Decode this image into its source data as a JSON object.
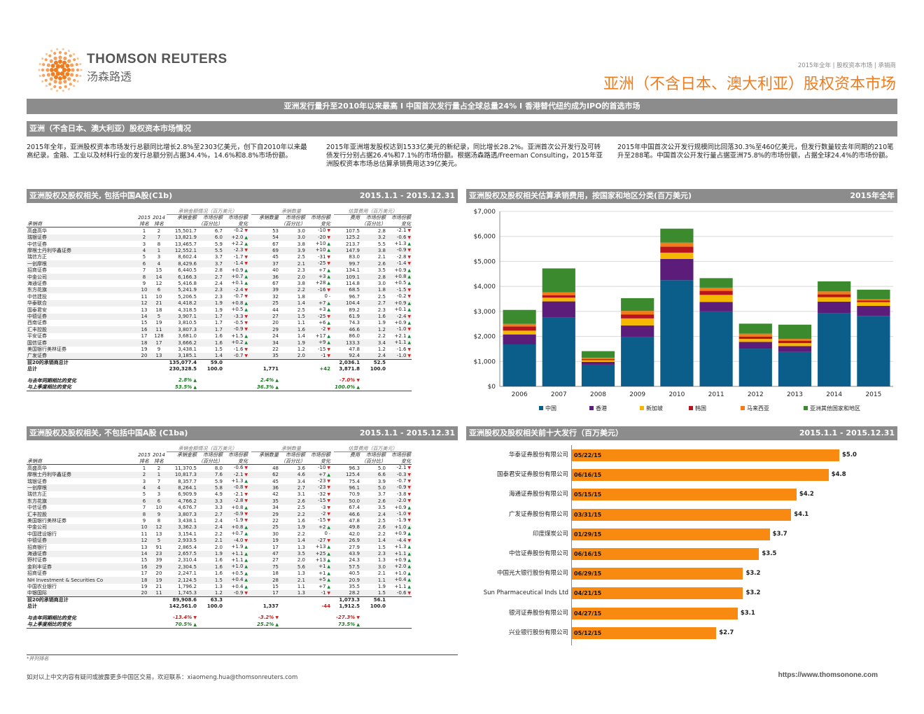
{
  "brand": {
    "name": "THOMSON REUTERS",
    "name_cn": "汤森路透"
  },
  "breadcrumb": "2015年全年 | 股权资本市场 | 承销商",
  "title": "亚洲（不含日本、澳大利亚）股权资本市场",
  "headline": "亚洲发行量升至2010年以来最高 I 中国首次发行量占全球总量24% I 香港替代纽约成为IPO的首选市场",
  "section_title": "亚洲（不含日本、澳大利亚）股权资本市场情况",
  "paragraphs": [
    "2015年全年，亚洲股权资本市场发行总额同比增长2.8%至2303亿美元，创下自2010年以来最高纪录。金融、工业以及材料行业的发行总额分别占据34.4%，14.6%和8.8%市场份额。",
    "2015年亚洲增发股权达到1533亿美元的新纪录，同比增长28.2%。亚洲首次公开发行及可转债发行分别占据26.4%和7.1%的市场份额。根据汤森路透/Freeman Consulting，2015年亚洲股权资本市场总估算承销费用达39亿美元。",
    "2015年中国首次公开发行规模同比回落30.3%至460亿美元，但发行数量较去年同期的210笔升至288笔。中国首次公开发行量占据亚洲75.8%的市场份额，占据全球24.4%的市场份额。"
  ],
  "colors": {
    "orange": "#f88a12",
    "grey": "#8c8c8c",
    "up": "#0a8a2c",
    "down": "#d21e1e"
  },
  "group_heads": {
    "proceeds": "承销金额情况（百万美元）",
    "deals": "承销数量",
    "fees": "估算费用（百万美元）"
  },
  "col_heads": {
    "y2015": "2015",
    "y2014": "2014",
    "rank": "排名",
    "manager": "承销商",
    "proceeds": "承销金额",
    "share1": "市场份额",
    "share2": "（百分比）",
    "mshare1": "市场份额",
    "mshare2": "变化",
    "deals": "承销数量",
    "fees": "费用"
  },
  "table1": {
    "title": "亚洲股权及股权相关, 包括中国A股(C1b)",
    "period": "2015.1.1 - 2015.12.31",
    "rows": [
      [
        "高盛高华",
        "1",
        "2",
        "15,501.7",
        "6.7",
        "-0.2",
        "53",
        "3.0",
        "-10",
        "107.5",
        "2.8",
        "-2.1"
      ],
      [
        "瑞银证券",
        "2",
        "7",
        "13,821.9",
        "6.0",
        "+2.0",
        "54",
        "3.0",
        "-20",
        "125.2",
        "3.2",
        "-0.6"
      ],
      [
        "中信证券",
        "3",
        "8",
        "13,465.7",
        "5.9",
        "+2.2",
        "67",
        "3.8",
        "+10",
        "213.7",
        "5.5",
        "+1.3"
      ],
      [
        "摩根士丹利华鑫证券",
        "4",
        "1",
        "12,552.1",
        "5.5",
        "-2.3",
        "69",
        "3.9",
        "+10",
        "147.9",
        "3.8",
        "-0.9"
      ],
      [
        "瑞信方正",
        "5",
        "3",
        "8,602.4",
        "3.7",
        "-1.7",
        "45",
        "2.5",
        "-31",
        "83.0",
        "2.1",
        "-2.8"
      ],
      [
        "一创摩根",
        "6",
        "4",
        "8,429.6",
        "3.7",
        "-1.4",
        "37",
        "2.1",
        "-25",
        "99.7",
        "2.6",
        "-1.4"
      ],
      [
        "招商证券",
        "7",
        "15",
        "6,440.5",
        "2.8",
        "+0.9",
        "40",
        "2.3",
        "+7",
        "134.1",
        "3.5",
        "+0.9"
      ],
      [
        "中金公司",
        "8",
        "14",
        "6,166.3",
        "2.7",
        "+0.7",
        "36",
        "2.0",
        "+3",
        "109.1",
        "2.8",
        "+0.8"
      ],
      [
        "海通证券",
        "9",
        "12",
        "5,416.8",
        "2.4",
        "+0.1",
        "67",
        "3.8",
        "+28",
        "114.8",
        "3.0",
        "+0.5"
      ],
      [
        "东方花旗",
        "10",
        "6",
        "5,241.9",
        "2.3",
        "-2.4",
        "39",
        "2.2",
        "-16",
        "68.5",
        "1.8",
        "-1.5"
      ],
      [
        "中信建投",
        "11",
        "10",
        "5,206.5",
        "2.3",
        "-0.7",
        "32",
        "1.8",
        "0",
        "96.7",
        "2.5",
        "-0.2"
      ],
      [
        "华泰联合",
        "12",
        "21",
        "4,418.2",
        "1.9",
        "+0.8",
        "25",
        "1.4",
        "+7",
        "104.4",
        "2.7",
        "+0.9"
      ],
      [
        "国泰君安",
        "13",
        "18",
        "4,318.5",
        "1.9",
        "+0.5",
        "44",
        "2.5",
        "+3",
        "89.2",
        "2.3",
        "+0.1"
      ],
      [
        "中德证券",
        "14",
        "5",
        "3,907.1",
        "1.7",
        "-3.3",
        "27",
        "1.5",
        "-25",
        "61.9",
        "1.6",
        "-2.4"
      ],
      [
        "西南证券",
        "15",
        "19",
        "3,810.5",
        "1.7",
        "-0.5",
        "20",
        "1.1",
        "+6",
        "74.3",
        "1.9",
        "+0.9"
      ],
      [
        "汇丰控股",
        "16",
        "11",
        "3,807.3",
        "1.7",
        "-0.9",
        "29",
        "1.6",
        "-2",
        "46.6",
        "1.2",
        "-1.0"
      ],
      [
        "平安证券",
        "17",
        "128",
        "3,681.0",
        "1.6",
        "+1.5",
        "24",
        "1.4",
        "+17",
        "86.0",
        "2.2",
        "+2.1"
      ],
      [
        "国信证券",
        "18",
        "17",
        "3,666.2",
        "1.6",
        "+0.2",
        "34",
        "1.9",
        "+9",
        "133.3",
        "3.4",
        "+1.1"
      ],
      [
        "美国银行美林证券",
        "19",
        "9",
        "3,438.1",
        "1.5",
        "-1.6",
        "22",
        "1.2",
        "-15",
        "47.8",
        "1.2",
        "-1.6"
      ],
      [
        "广发证券",
        "20",
        "13",
        "3,185.1",
        "1.4",
        "-0.7",
        "35",
        "2.0",
        "-1",
        "92.4",
        "2.4",
        "-1.0"
      ]
    ],
    "subtotal": [
      "前20的承销商总计",
      "135,077.4",
      "59.0",
      "",
      "2,036.1",
      "52.5"
    ],
    "total": [
      "总计",
      "230,328.5",
      "100.0",
      "1,771",
      "+42",
      "3,871.8",
      "100.0"
    ],
    "yoy": [
      "与去年同期相比的变化",
      "2.8%",
      "2.4%",
      "-7.0%"
    ],
    "qoq": [
      "与上季度相比的变化",
      "53.5%",
      "36.3%",
      "100.0%"
    ]
  },
  "table2": {
    "title": "亚洲股权及股权相关, 不包括中国A股 (C1ba)",
    "period": "2015.1.1 - 2015.12.31",
    "rows": [
      [
        "高盛高华",
        "1",
        "2",
        "11,370.5",
        "8.0",
        "-0.6",
        "48",
        "3.6",
        "-10",
        "96.3",
        "5.0",
        "-2.1"
      ],
      [
        "摩根士丹利华鑫证券",
        "2",
        "1",
        "10,817.3",
        "7.6",
        "-2.1",
        "62",
        "4.6",
        "+7",
        "125.4",
        "6.6",
        "-0.3"
      ],
      [
        "瑞银证券",
        "3",
        "7",
        "8,357.7",
        "5.9",
        "+1.3",
        "45",
        "3.4",
        "-23",
        "75.4",
        "3.9",
        "-0.7"
      ],
      [
        "一创摩根",
        "4",
        "4",
        "8,264.1",
        "5.8",
        "-0.8",
        "36",
        "2.7",
        "-23",
        "96.1",
        "5.0",
        "-0.9"
      ],
      [
        "瑞信方正",
        "5",
        "3",
        "6,909.9",
        "4.9",
        "-2.1",
        "42",
        "3.1",
        "-32",
        "70.9",
        "3.7",
        "-3.8"
      ],
      [
        "东方花旗",
        "6",
        "6",
        "4,766.2",
        "3.3",
        "-2.8",
        "35",
        "2.6",
        "-15",
        "50.0",
        "2.6",
        "-2.0"
      ],
      [
        "中信证券",
        "7",
        "10",
        "4,676.7",
        "3.3",
        "+0.8",
        "34",
        "2.5",
        "-3",
        "67.4",
        "3.5",
        "+0.9"
      ],
      [
        "汇丰控股",
        "8",
        "9",
        "3,807.3",
        "2.7",
        "-0.9",
        "29",
        "2.2",
        "-2",
        "46.6",
        "2.4",
        "-1.0"
      ],
      [
        "美国银行美林证券",
        "9",
        "8",
        "3,438.1",
        "2.4",
        "-1.9",
        "22",
        "1.6",
        "-15",
        "47.8",
        "2.5",
        "-1.9"
      ],
      [
        "中金公司",
        "10",
        "12",
        "3,362.3",
        "2.4",
        "+0.8",
        "25",
        "1.9",
        "+2",
        "49.8",
        "2.6",
        "+1.0"
      ],
      [
        "中国建设银行",
        "11",
        "13",
        "3,154.1",
        "2.2",
        "+0.7",
        "30",
        "2.2",
        "0",
        "42.0",
        "2.2",
        "+0.9"
      ],
      [
        "中德证券",
        "12",
        "5",
        "2,933.5",
        "2.1",
        "-4.0",
        "19",
        "1.4",
        "-27",
        "26.9",
        "1.4",
        "-4.4"
      ],
      [
        "招商银行",
        "13",
        "91",
        "2,865.4",
        "2.0",
        "+1.9",
        "17",
        "1.3",
        "+13",
        "27.9",
        "1.5",
        "+1.3"
      ],
      [
        "海通证券",
        "14",
        "23",
        "2,657.5",
        "1.9",
        "+1.1",
        "47",
        "3.5",
        "+25",
        "43.9",
        "2.3",
        "+1.1"
      ],
      [
        "野村证券",
        "15",
        "39",
        "2,310.4",
        "1.6",
        "+1.1",
        "27",
        "2.0",
        "+13",
        "24.3",
        "1.3",
        "+0.9"
      ],
      [
        "金利丰证券",
        "16",
        "29",
        "2,304.5",
        "1.6",
        "+1.0",
        "75",
        "5.6",
        "+1",
        "57.5",
        "3.0",
        "+2.0"
      ],
      [
        "招商证券",
        "17",
        "20",
        "2,247.1",
        "1.6",
        "+0.5",
        "18",
        "1.3",
        "+1",
        "40.5",
        "2.1",
        "+1.0"
      ],
      [
        "NH Investment & Securities Co",
        "18",
        "19",
        "2,124.5",
        "1.5",
        "+0.4",
        "28",
        "2.1",
        "+5",
        "20.9",
        "1.1",
        "+0.4"
      ],
      [
        "中国农业银行",
        "19",
        "21",
        "1,796.2",
        "1.3",
        "+0.4",
        "15",
        "1.1",
        "+7",
        "35.5",
        "1.9",
        "+1.1"
      ],
      [
        "中银国际",
        "20",
        "11",
        "1,745.3",
        "1.2",
        "-0.9",
        "17",
        "1.3",
        "-1",
        "28.2",
        "1.5",
        "-0.6"
      ]
    ],
    "subtotal": [
      "前20的承销商总计",
      "89,908.6",
      "63.3",
      "",
      "1,073.3",
      "56.1"
    ],
    "total": [
      "总计",
      "142,561.0",
      "100.0",
      "1,337",
      "-44",
      "1,912.5",
      "100.0"
    ],
    "yoy": [
      "与去年同期相比的变化",
      "-13.4%",
      "-3.2%",
      "-27.3%"
    ],
    "qoq": [
      "与上季度相比的变化",
      "70.5%",
      "25.2%",
      "73.5%"
    ],
    "note": "*并列排名"
  },
  "chart_data": [
    {
      "type": "bar",
      "stacked": true,
      "title": "亚洲股权及股权相关估算承销费用，按国家和地区分类(百万美元)",
      "period": "2015年全年",
      "categories": [
        "2006",
        "2007",
        "2008",
        "2009",
        "2010",
        "2011",
        "2012",
        "2013",
        "2014",
        "2015"
      ],
      "ylim": [
        0,
        7000
      ],
      "yticks": [
        "$0",
        "$1,000",
        "$2,000",
        "$3,000",
        "$4,000",
        "$5,000",
        "$6,000",
        "$7,000"
      ],
      "series": [
        {
          "name": "中国",
          "color": "#0b5e8a",
          "values": [
            1680,
            2750,
            870,
            1970,
            4250,
            3000,
            1510,
            1380,
            2920,
            2820
          ]
        },
        {
          "name": "香港",
          "color": "#5b1c7a",
          "values": [
            400,
            650,
            110,
            470,
            850,
            380,
            270,
            230,
            470,
            400
          ]
        },
        {
          "name": "新加坡",
          "color": "#f5b800",
          "values": [
            150,
            150,
            70,
            280,
            250,
            280,
            120,
            120,
            180,
            150
          ]
        },
        {
          "name": "韩国",
          "color": "#b8141c",
          "values": [
            170,
            100,
            40,
            160,
            240,
            160,
            90,
            90,
            110,
            60
          ]
        },
        {
          "name": "马来西亚",
          "color": "#f47a1a",
          "values": [
            100,
            110,
            60,
            140,
            160,
            130,
            120,
            80,
            120,
            60
          ]
        },
        {
          "name": "亚洲其他国家和地区",
          "color": "#3c8a2e",
          "values": [
            560,
            960,
            260,
            510,
            560,
            380,
            400,
            570,
            400,
            380
          ]
        }
      ],
      "legend": "bottom"
    },
    {
      "type": "bar",
      "orientation": "horizontal",
      "title": "亚洲股权及股权相关前十大发行（百万美元）",
      "period": "2015.1.1 - 2015.12.31",
      "categories": [
        "华泰证券股份有限公司",
        "国泰君安证券股份有限公司",
        "海通证券股份有限公司",
        "广发证券股份有限公司",
        "印度煤炭公司",
        "中信证券股份有限公司",
        "中国光大银行股份有限公司",
        "Sun Pharmaceutical Inds Ltd",
        "银河证券股份有限公司",
        "兴业银行股份有限公司"
      ],
      "dates": [
        "05/22/15",
        "06/16/15",
        "05/15/15",
        "03/31/15",
        "01/29/15",
        "06/16/15",
        "06/29/15",
        "04/21/15",
        "04/27/15",
        "05/12/15"
      ],
      "values": [
        5.0,
        4.8,
        4.2,
        4.1,
        3.7,
        3.5,
        3.2,
        3.2,
        3.1,
        2.7
      ],
      "labels": [
        "$5.0",
        "$4.8",
        "$4.2",
        "$4.1",
        "$3.7",
        "$3.5",
        "$3.2",
        "$3.2",
        "$3.1",
        "$2.7"
      ]
    }
  ],
  "footer": {
    "contact": "如对以上中文内容有疑问或披露更多中国区交易，欢迎联系：xiaomeng.hua@thomsonreuters.com",
    "url": "https://www.thomsonone.com"
  }
}
